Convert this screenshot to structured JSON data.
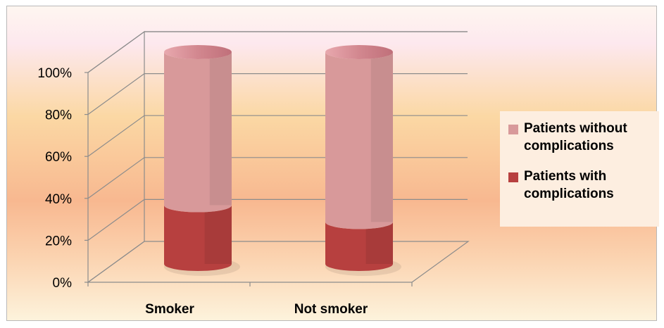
{
  "chart_data": {
    "type": "bar",
    "stacked": true,
    "percent_stacked": true,
    "style": "3d-cylinder",
    "categories": [
      "Smoker",
      "Not smoker"
    ],
    "series": [
      {
        "name": "Patients with complications",
        "values": [
          27,
          19
        ],
        "color": "#b7403f"
      },
      {
        "name": "Patients without complications",
        "values": [
          73,
          81
        ],
        "color": "#d8999a"
      }
    ],
    "ylim": [
      0,
      100
    ],
    "yticks": [
      "0%",
      "20%",
      "40%",
      "60%",
      "80%",
      "100%"
    ],
    "grid": true,
    "legend_position": "right",
    "legend": [
      {
        "label": "Patients without complications",
        "color": "#d8999a"
      },
      {
        "label": "Patients with complications",
        "color": "#b7403f"
      }
    ]
  }
}
